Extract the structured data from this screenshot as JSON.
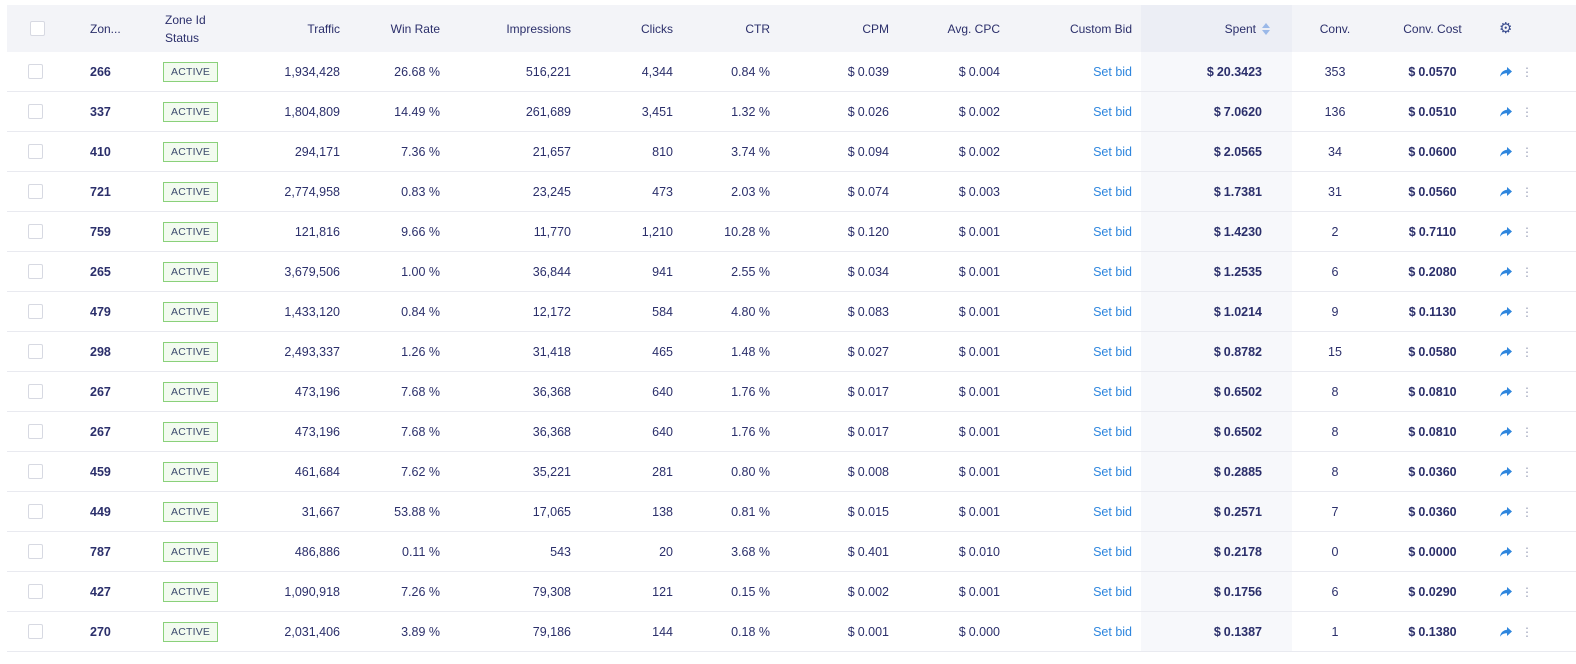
{
  "headers": {
    "zone": "Zon...",
    "zone_status_line1": "Zone Id",
    "zone_status_line2": "Status",
    "traffic": "Traffic",
    "win_rate": "Win Rate",
    "impressions": "Impressions",
    "clicks": "Clicks",
    "ctr": "CTR",
    "cpm": "CPM",
    "avg_cpc": "Avg. CPC",
    "custom_bid": "Custom Bid",
    "spent": "Spent",
    "conv": "Conv.",
    "conv_cost": "Conv. Cost"
  },
  "icons": {
    "settings": "gear-icon",
    "sort": "sort-icon",
    "row_action": "share-arrow-icon"
  },
  "colors": {
    "accent": "#2e86de",
    "active_badge_border": "#8ad17a",
    "text": "#2b2f6b"
  },
  "rows": [
    {
      "zone": "266",
      "status": "ACTIVE",
      "traffic": "1,934,428",
      "win_rate": "26.68 %",
      "impressions": "516,221",
      "clicks": "4,344",
      "ctr": "0.84 %",
      "cpm": "0.039",
      "avg_cpc": "0.004",
      "custom_bid": "Set bid",
      "spent": "20.3423",
      "conv": "353",
      "conv_cost": "0.0570"
    },
    {
      "zone": "337",
      "status": "ACTIVE",
      "traffic": "1,804,809",
      "win_rate": "14.49 %",
      "impressions": "261,689",
      "clicks": "3,451",
      "ctr": "1.32 %",
      "cpm": "0.026",
      "avg_cpc": "0.002",
      "custom_bid": "Set bid",
      "spent": "7.0620",
      "conv": "136",
      "conv_cost": "0.0510"
    },
    {
      "zone": "410",
      "status": "ACTIVE",
      "traffic": "294,171",
      "win_rate": "7.36 %",
      "impressions": "21,657",
      "clicks": "810",
      "ctr": "3.74 %",
      "cpm": "0.094",
      "avg_cpc": "0.002",
      "custom_bid": "Set bid",
      "spent": "2.0565",
      "conv": "34",
      "conv_cost": "0.0600"
    },
    {
      "zone": "721",
      "status": "ACTIVE",
      "traffic": "2,774,958",
      "win_rate": "0.83 %",
      "impressions": "23,245",
      "clicks": "473",
      "ctr": "2.03 %",
      "cpm": "0.074",
      "avg_cpc": "0.003",
      "custom_bid": "Set bid",
      "spent": "1.7381",
      "conv": "31",
      "conv_cost": "0.0560"
    },
    {
      "zone": "759",
      "status": "ACTIVE",
      "traffic": "121,816",
      "win_rate": "9.66 %",
      "impressions": "11,770",
      "clicks": "1,210",
      "ctr": "10.28 %",
      "cpm": "0.120",
      "avg_cpc": "0.001",
      "custom_bid": "Set bid",
      "spent": "1.4230",
      "conv": "2",
      "conv_cost": "0.7110"
    },
    {
      "zone": "265",
      "status": "ACTIVE",
      "traffic": "3,679,506",
      "win_rate": "1.00 %",
      "impressions": "36,844",
      "clicks": "941",
      "ctr": "2.55 %",
      "cpm": "0.034",
      "avg_cpc": "0.001",
      "custom_bid": "Set bid",
      "spent": "1.2535",
      "conv": "6",
      "conv_cost": "0.2080"
    },
    {
      "zone": "479",
      "status": "ACTIVE",
      "traffic": "1,433,120",
      "win_rate": "0.84 %",
      "impressions": "12,172",
      "clicks": "584",
      "ctr": "4.80 %",
      "cpm": "0.083",
      "avg_cpc": "0.001",
      "custom_bid": "Set bid",
      "spent": "1.0214",
      "conv": "9",
      "conv_cost": "0.1130"
    },
    {
      "zone": "298",
      "status": "ACTIVE",
      "traffic": "2,493,337",
      "win_rate": "1.26 %",
      "impressions": "31,418",
      "clicks": "465",
      "ctr": "1.48 %",
      "cpm": "0.027",
      "avg_cpc": "0.001",
      "custom_bid": "Set bid",
      "spent": "0.8782",
      "conv": "15",
      "conv_cost": "0.0580"
    },
    {
      "zone": "267",
      "status": "ACTIVE",
      "traffic": "473,196",
      "win_rate": "7.68 %",
      "impressions": "36,368",
      "clicks": "640",
      "ctr": "1.76 %",
      "cpm": "0.017",
      "avg_cpc": "0.001",
      "custom_bid": "Set bid",
      "spent": "0.6502",
      "conv": "8",
      "conv_cost": "0.0810"
    },
    {
      "zone": "267",
      "status": "ACTIVE",
      "traffic": "473,196",
      "win_rate": "7.68 %",
      "impressions": "36,368",
      "clicks": "640",
      "ctr": "1.76 %",
      "cpm": "0.017",
      "avg_cpc": "0.001",
      "custom_bid": "Set bid",
      "spent": "0.6502",
      "conv": "8",
      "conv_cost": "0.0810"
    },
    {
      "zone": "459",
      "status": "ACTIVE",
      "traffic": "461,684",
      "win_rate": "7.62 %",
      "impressions": "35,221",
      "clicks": "281",
      "ctr": "0.80 %",
      "cpm": "0.008",
      "avg_cpc": "0.001",
      "custom_bid": "Set bid",
      "spent": "0.2885",
      "conv": "8",
      "conv_cost": "0.0360"
    },
    {
      "zone": "449",
      "status": "ACTIVE",
      "traffic": "31,667",
      "win_rate": "53.88 %",
      "impressions": "17,065",
      "clicks": "138",
      "ctr": "0.81 %",
      "cpm": "0.015",
      "avg_cpc": "0.001",
      "custom_bid": "Set bid",
      "spent": "0.2571",
      "conv": "7",
      "conv_cost": "0.0360"
    },
    {
      "zone": "787",
      "status": "ACTIVE",
      "traffic": "486,886",
      "win_rate": "0.11 %",
      "impressions": "543",
      "clicks": "20",
      "ctr": "3.68 %",
      "cpm": "0.401",
      "avg_cpc": "0.010",
      "custom_bid": "Set bid",
      "spent": "0.2178",
      "conv": "0",
      "conv_cost": "0.0000"
    },
    {
      "zone": "427",
      "status": "ACTIVE",
      "traffic": "1,090,918",
      "win_rate": "7.26 %",
      "impressions": "79,308",
      "clicks": "121",
      "ctr": "0.15 %",
      "cpm": "0.002",
      "avg_cpc": "0.001",
      "custom_bid": "Set bid",
      "spent": "0.1756",
      "conv": "6",
      "conv_cost": "0.0290"
    },
    {
      "zone": "270",
      "status": "ACTIVE",
      "traffic": "2,031,406",
      "win_rate": "3.89 %",
      "impressions": "79,186",
      "clicks": "144",
      "ctr": "0.18 %",
      "cpm": "0.001",
      "avg_cpc": "0.000",
      "custom_bid": "Set bid",
      "spent": "0.1387",
      "conv": "1",
      "conv_cost": "0.1380"
    }
  ],
  "currency_symbol": "$"
}
